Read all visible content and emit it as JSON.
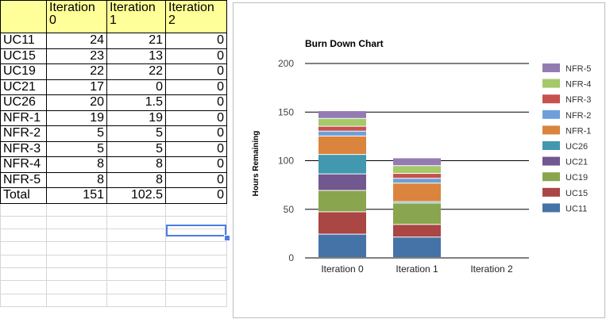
{
  "spreadsheet": {
    "headers": [
      "",
      "Iteration 0",
      "Iteration 1",
      "Iteration 2"
    ],
    "rows": [
      {
        "label": "UC11",
        "values": [
          "24",
          "21",
          "0"
        ]
      },
      {
        "label": "UC15",
        "values": [
          "23",
          "13",
          "0"
        ]
      },
      {
        "label": "UC19",
        "values": [
          "22",
          "22",
          "0"
        ]
      },
      {
        "label": "UC21",
        "values": [
          "17",
          "0",
          "0"
        ]
      },
      {
        "label": "UC26",
        "values": [
          "20",
          "1.5",
          "0"
        ]
      },
      {
        "label": "NFR-1",
        "values": [
          "19",
          "19",
          "0"
        ]
      },
      {
        "label": "NFR-2",
        "values": [
          "5",
          "5",
          "0"
        ]
      },
      {
        "label": "NFR-3",
        "values": [
          "5",
          "5",
          "0"
        ]
      },
      {
        "label": "NFR-4",
        "values": [
          "8",
          "8",
          "0"
        ]
      },
      {
        "label": "NFR-5",
        "values": [
          "8",
          "8",
          "0"
        ]
      }
    ],
    "total": {
      "label": "Total",
      "values": [
        "151",
        "102.5",
        "0"
      ]
    }
  },
  "chart_data": {
    "type": "bar",
    "stacked": true,
    "title": "Burn Down Chart",
    "xlabel": "",
    "ylabel": "Hours Remaining",
    "ylim": [
      0,
      200
    ],
    "yticks": [
      0,
      50,
      100,
      150,
      200
    ],
    "categories": [
      "Iteration 0",
      "Iteration 1",
      "Iteration 2"
    ],
    "legend_position": "right",
    "series": [
      {
        "name": "UC11",
        "color": "#4572a7",
        "values": [
          24,
          21,
          0
        ]
      },
      {
        "name": "UC15",
        "color": "#aa4643",
        "values": [
          23,
          13,
          0
        ]
      },
      {
        "name": "UC19",
        "color": "#89a54e",
        "values": [
          22,
          22,
          0
        ]
      },
      {
        "name": "UC21",
        "color": "#71588f",
        "values": [
          17,
          0,
          0
        ]
      },
      {
        "name": "UC26",
        "color": "#4198af",
        "values": [
          20,
          1.5,
          0
        ]
      },
      {
        "name": "NFR-1",
        "color": "#db843d",
        "values": [
          19,
          19,
          0
        ]
      },
      {
        "name": "NFR-2",
        "color": "#6f9fd8",
        "values": [
          5,
          5,
          0
        ]
      },
      {
        "name": "NFR-3",
        "color": "#c6524f",
        "values": [
          5,
          5,
          0
        ]
      },
      {
        "name": "NFR-4",
        "color": "#a5c86a",
        "values": [
          8,
          8,
          0
        ]
      },
      {
        "name": "NFR-5",
        "color": "#957bb4",
        "values": [
          8,
          8,
          0
        ]
      }
    ]
  }
}
